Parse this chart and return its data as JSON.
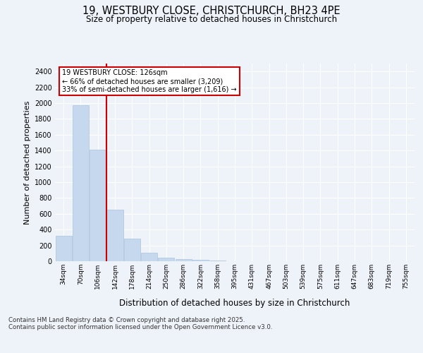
{
  "title1": "19, WESTBURY CLOSE, CHRISTCHURCH, BH23 4PE",
  "title2": "Size of property relative to detached houses in Christchurch",
  "xlabel": "Distribution of detached houses by size in Christchurch",
  "ylabel": "Number of detached properties",
  "bar_labels": [
    "34sqm",
    "70sqm",
    "106sqm",
    "142sqm",
    "178sqm",
    "214sqm",
    "250sqm",
    "286sqm",
    "322sqm",
    "358sqm",
    "395sqm",
    "431sqm",
    "467sqm",
    "503sqm",
    "539sqm",
    "575sqm",
    "611sqm",
    "647sqm",
    "683sqm",
    "719sqm",
    "755sqm"
  ],
  "bar_values": [
    325,
    1970,
    1415,
    650,
    285,
    108,
    45,
    28,
    18,
    8,
    2,
    0,
    0,
    0,
    0,
    0,
    0,
    0,
    0,
    0,
    0
  ],
  "bar_color": "#c5d8ed",
  "bar_edge_color": "#aac4de",
  "red_line_x": 2.5,
  "annotation_text": "19 WESTBURY CLOSE: 126sqm\n← 66% of detached houses are smaller (3,209)\n33% of semi-detached houses are larger (1,616) →",
  "ylim": [
    0,
    2500
  ],
  "yticks": [
    0,
    200,
    400,
    600,
    800,
    1000,
    1200,
    1400,
    1600,
    1800,
    2000,
    2200,
    2400
  ],
  "footer1": "Contains HM Land Registry data © Crown copyright and database right 2025.",
  "footer2": "Contains public sector information licensed under the Open Government Licence v3.0.",
  "bg_color": "#eef2f9",
  "grid_color": "#ffffff",
  "annotation_box_color": "#ffffff",
  "annotation_box_edge": "#cc0000",
  "red_line_color": "#cc0000"
}
